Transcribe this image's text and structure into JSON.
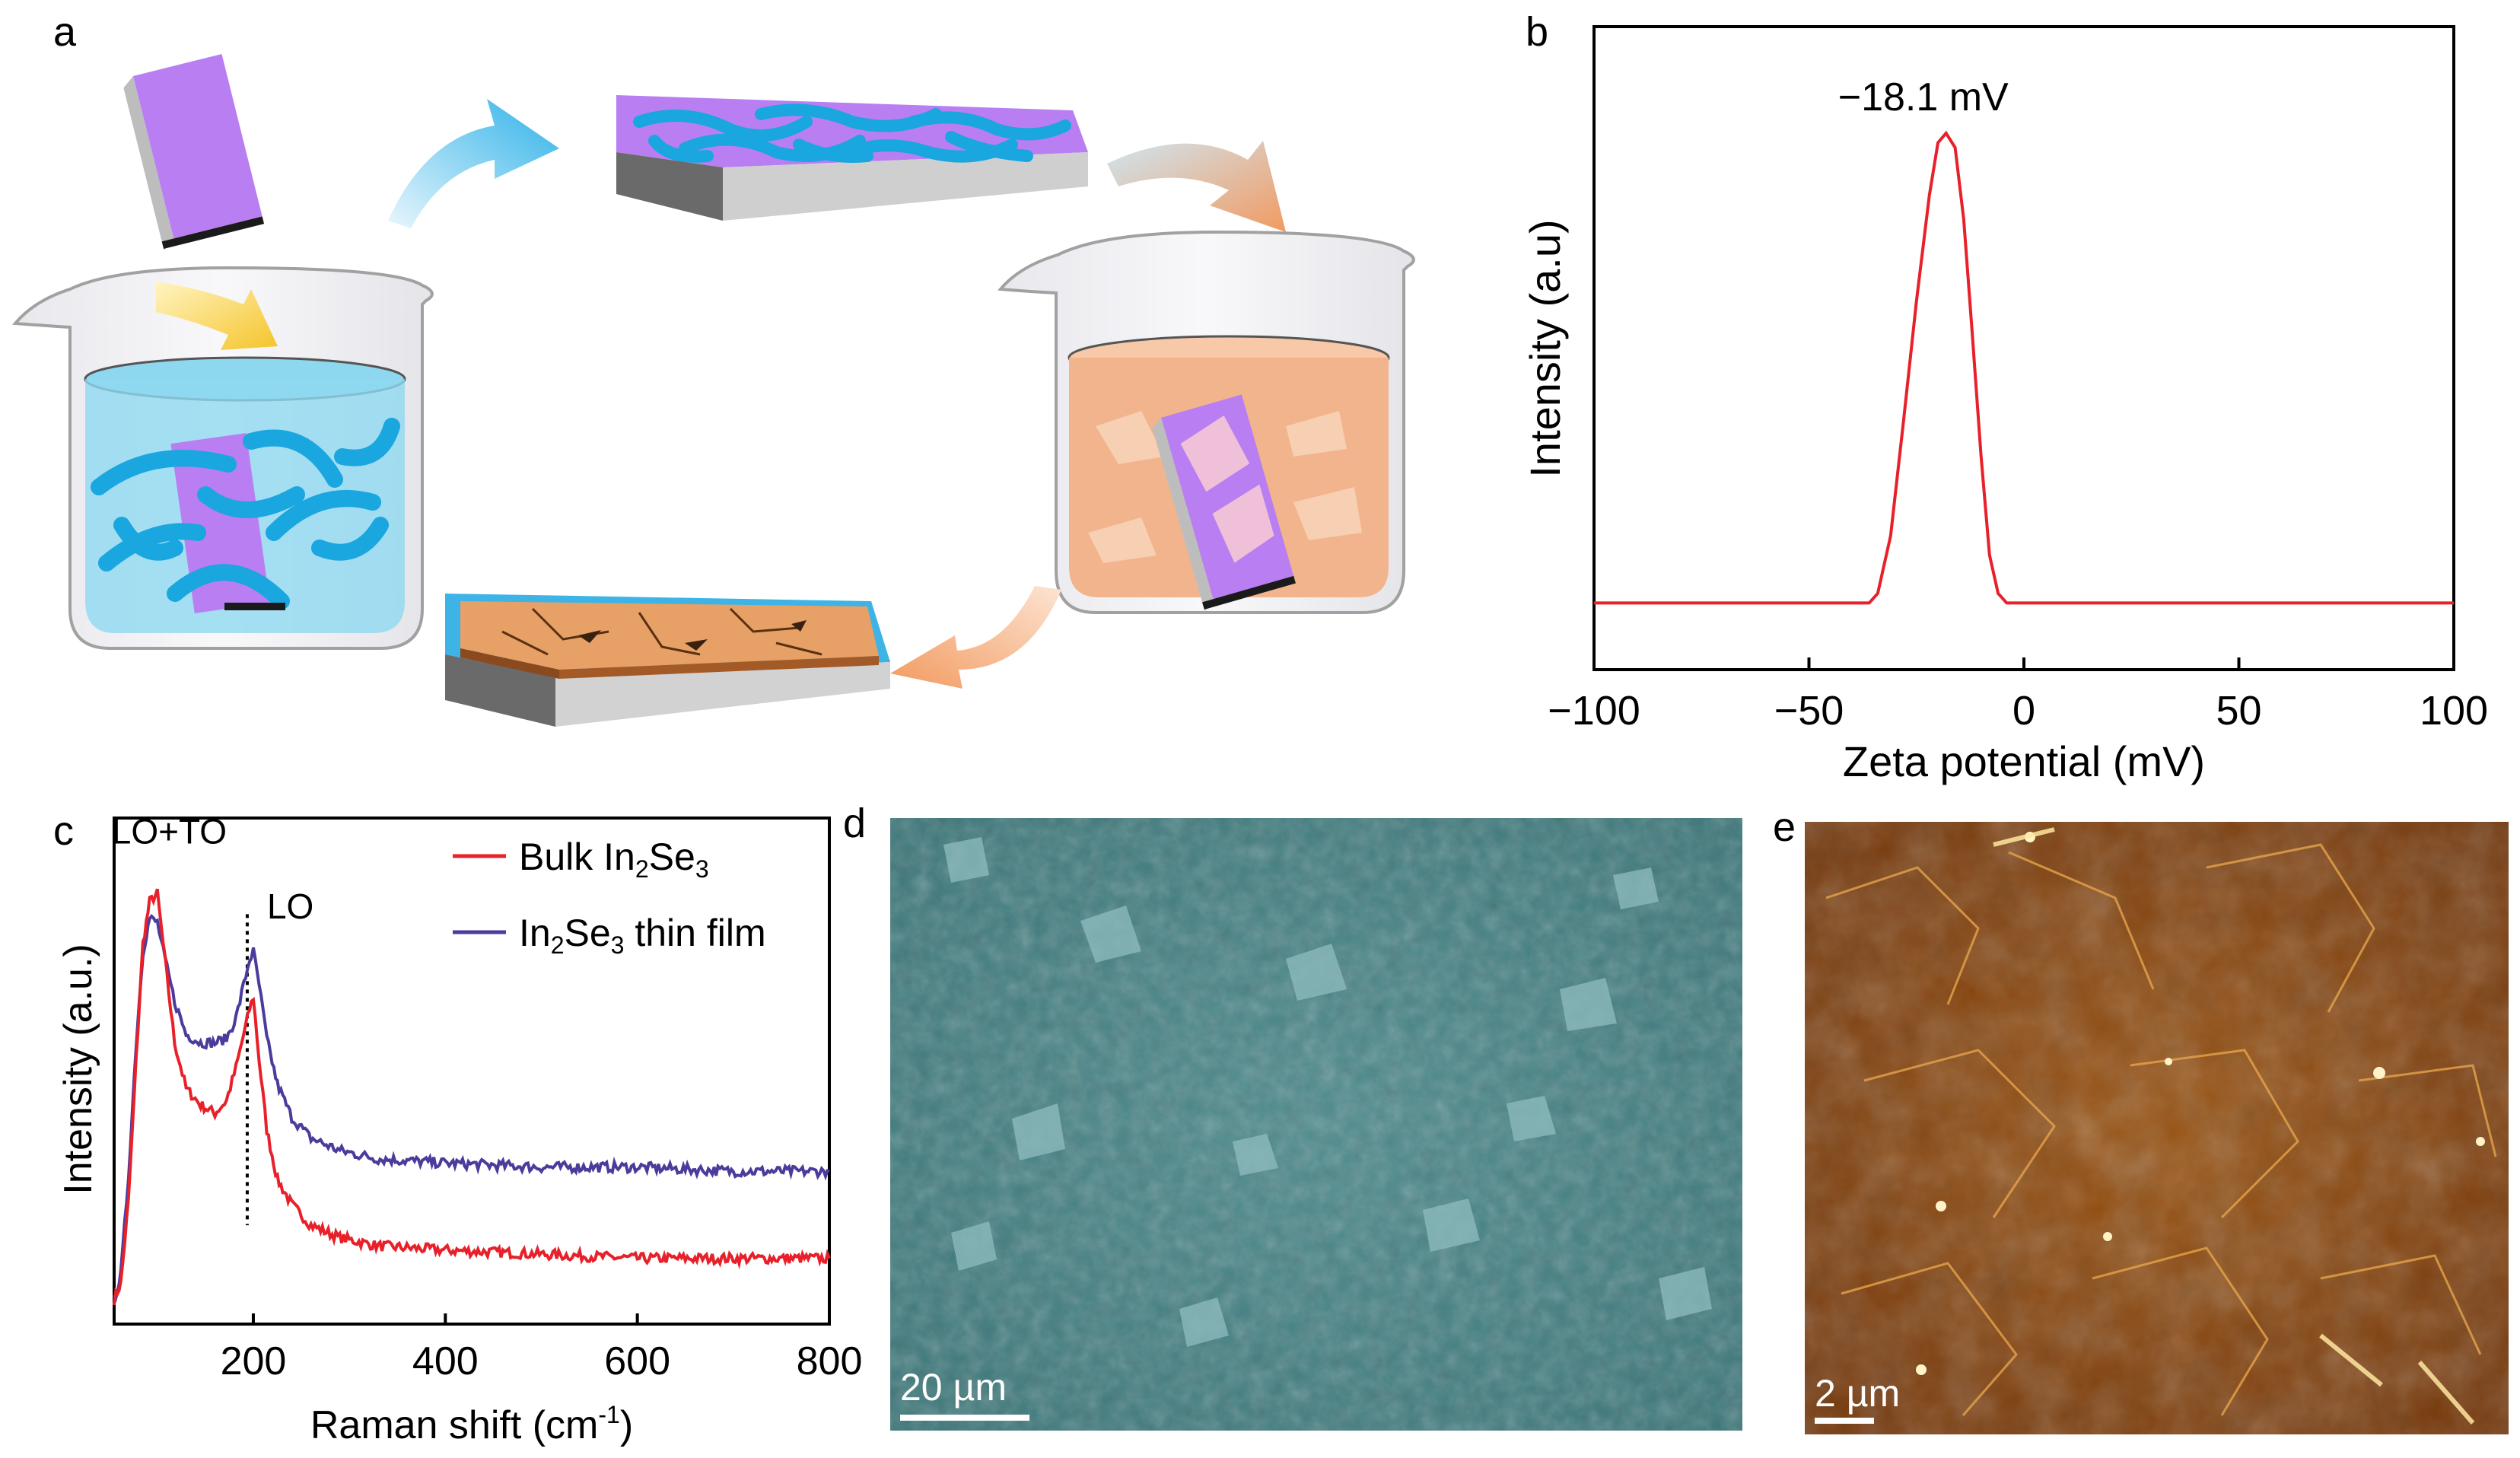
{
  "panels": {
    "a": {
      "label": "a"
    },
    "b": {
      "label": "b"
    },
    "c": {
      "label": "c"
    },
    "d": {
      "label": "d",
      "scale_bar": "20 µm"
    },
    "e": {
      "label": "e",
      "scale_bar": "2 µm"
    }
  },
  "colors": {
    "red": "#e8202a",
    "purple": "#4b3c9c",
    "cyan": "#1aa6df",
    "violet": "#b87ef2",
    "orange_liquid": "#f2b48c",
    "film_orange": "#e7a066"
  },
  "chart_data": [
    {
      "type": "line",
      "panel": "b",
      "title": "",
      "xlabel": "Zeta potential (mV)",
      "ylabel": "Intensity (a.u)",
      "xlim": [
        -100,
        100
      ],
      "ylim": [
        0,
        1.08
      ],
      "xticks": [
        -100,
        -50,
        0,
        50,
        100
      ],
      "xtick_labels": [
        "−100",
        "−50",
        "0",
        "50",
        "100"
      ],
      "annotation": {
        "text": "−18.1 mV",
        "x": -18.1
      },
      "series": [
        {
          "name": "zeta",
          "color": "#e8202a",
          "x": [
            -100,
            -36,
            -34,
            -31,
            -28,
            -25,
            -22,
            -20,
            -18.1,
            -16,
            -14,
            -12,
            -10,
            -8,
            -6,
            -4,
            -2,
            100
          ],
          "y": [
            0.02,
            0.02,
            0.04,
            0.16,
            0.4,
            0.65,
            0.87,
            0.98,
            1.0,
            0.97,
            0.82,
            0.58,
            0.33,
            0.12,
            0.04,
            0.02,
            0.02,
            0.02
          ]
        }
      ]
    },
    {
      "type": "line",
      "panel": "c",
      "title": "",
      "xlabel": "Raman shift (cm",
      "xlabel_sup": "-1",
      "xlabel_end": ")",
      "ylabel": "Intensity (a.u.)",
      "xlim": [
        55,
        800
      ],
      "ylim": [
        0,
        1.12
      ],
      "xticks": [
        200,
        400,
        600,
        800
      ],
      "xtick_labels": [
        "200",
        "400",
        "600",
        "800"
      ],
      "annotations": [
        {
          "text": "LO+TO",
          "x": 100
        },
        {
          "text": "LO",
          "x": 200
        }
      ],
      "legend": {
        "placement": "top-right"
      },
      "series": [
        {
          "name": "Bulk In2Se3",
          "label_pre": "Bulk In",
          "sub1": "2",
          "label_mid": "Se",
          "sub2": "3",
          "label_post": "",
          "color": "#e8202a",
          "x": [
            55,
            62,
            70,
            78,
            85,
            92,
            100,
            108,
            118,
            130,
            145,
            160,
            172,
            182,
            190,
            196,
            200,
            206,
            214,
            225,
            240,
            260,
            290,
            330,
            400,
            500,
            600,
            700,
            800
          ],
          "y": [
            0.04,
            0.08,
            0.28,
            0.62,
            0.9,
            1.0,
            1.02,
            0.86,
            0.66,
            0.55,
            0.51,
            0.49,
            0.52,
            0.6,
            0.68,
            0.74,
            0.77,
            0.62,
            0.45,
            0.33,
            0.27,
            0.22,
            0.19,
            0.17,
            0.16,
            0.15,
            0.14,
            0.14,
            0.14
          ]
        },
        {
          "name": "In2Se3 thin film",
          "label_pre": "In",
          "sub1": "2",
          "label_mid": "Se",
          "sub2": "3",
          "label_post": " thin film",
          "color": "#4b3c9c",
          "x": [
            55,
            62,
            70,
            78,
            85,
            92,
            100,
            108,
            118,
            130,
            145,
            160,
            172,
            182,
            190,
            196,
            200,
            206,
            214,
            225,
            240,
            260,
            290,
            330,
            400,
            500,
            600,
            700,
            800
          ],
          "y": [
            0.04,
            0.1,
            0.34,
            0.66,
            0.88,
            0.96,
            0.95,
            0.86,
            0.76,
            0.68,
            0.66,
            0.66,
            0.67,
            0.72,
            0.8,
            0.86,
            0.88,
            0.8,
            0.67,
            0.56,
            0.48,
            0.43,
            0.4,
            0.38,
            0.37,
            0.36,
            0.36,
            0.35,
            0.35
          ]
        }
      ]
    }
  ]
}
